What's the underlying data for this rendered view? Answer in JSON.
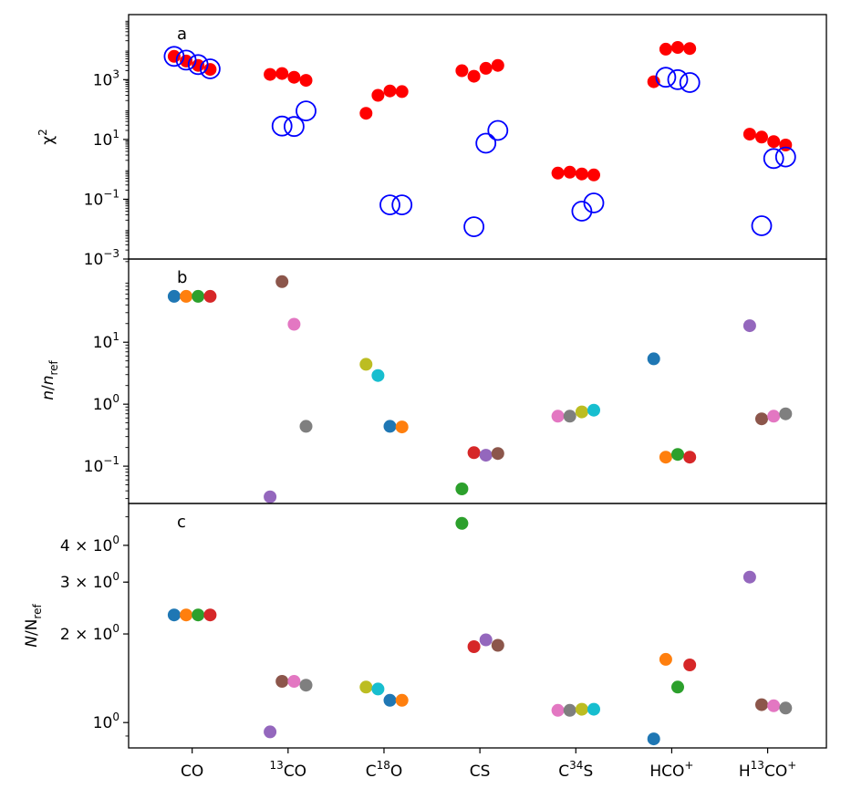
{
  "colors": {
    "red": "#ff0000",
    "blue": "#0000ff",
    "tab_blue": "#1f77b4",
    "tab_orange": "#ff7f0e",
    "tab_green": "#2ca02c",
    "tab_red": "#d62728",
    "tab_purple": "#9467bd",
    "tab_brown": "#8c564b",
    "tab_pink": "#e377c2",
    "tab_gray": "#7f7f7f",
    "tab_olive": "#bcbd22",
    "tab_cyan": "#17becf"
  },
  "chart_data": [
    {
      "panel": "a",
      "type": "scatter",
      "yscale": "log",
      "ylabel": "χ²",
      "ylim": [
        0.001,
        150000
      ],
      "yticks": [
        {
          "value": 0.001,
          "base": "10",
          "exp": "−3"
        },
        {
          "value": 0.1,
          "base": "10",
          "exp": "−1"
        },
        {
          "value": 10,
          "base": "10",
          "exp": "1"
        },
        {
          "value": 1000,
          "base": "10",
          "exp": "3"
        }
      ],
      "categories": [
        "CO",
        "¹³CO",
        "C¹⁸O",
        "CS",
        "C³⁴S",
        "HCO⁺",
        "H¹³CO⁺"
      ],
      "series": [
        {
          "name": "filled",
          "style": "filled",
          "color": "red",
          "points": [
            [
              0.0,
              6000
            ],
            [
              0.5,
              4200
            ],
            [
              1.0,
              3000
            ],
            [
              1.5,
              2200
            ],
            [
              4.0,
              1500
            ],
            [
              4.5,
              1600
            ],
            [
              5.0,
              1200
            ],
            [
              5.5,
              950
            ],
            [
              8.0,
              75
            ],
            [
              8.5,
              300
            ],
            [
              9.0,
              420
            ],
            [
              9.5,
              400
            ],
            [
              12.0,
              2000
            ],
            [
              12.5,
              1300
            ],
            [
              13.0,
              2400
            ],
            [
              13.5,
              3000
            ],
            [
              16.0,
              0.75
            ],
            [
              16.5,
              0.8
            ],
            [
              17.0,
              0.7
            ],
            [
              17.5,
              0.65
            ],
            [
              20.0,
              850
            ],
            [
              20.5,
              10500
            ],
            [
              21.0,
              12000
            ],
            [
              21.5,
              11000
            ],
            [
              24.0,
              15
            ],
            [
              24.5,
              12
            ],
            [
              25.0,
              8.5
            ],
            [
              25.5,
              6.5
            ]
          ]
        },
        {
          "name": "open",
          "style": "open",
          "color": "blue",
          "points": [
            [
              0.0,
              6000
            ],
            [
              0.5,
              4500
            ],
            [
              1.0,
              3200
            ],
            [
              1.5,
              2300
            ],
            [
              4.5,
              28
            ],
            [
              5.0,
              27
            ],
            [
              5.5,
              90
            ],
            [
              9.0,
              0.065
            ],
            [
              9.5,
              0.065
            ],
            [
              12.5,
              0.012
            ],
            [
              13.0,
              7.5
            ],
            [
              13.5,
              20
            ],
            [
              17.0,
              0.04
            ],
            [
              17.5,
              0.075
            ],
            [
              20.5,
              1200
            ],
            [
              21.0,
              1000
            ],
            [
              21.5,
              800
            ],
            [
              24.5,
              0.013
            ],
            [
              25.0,
              2.3
            ],
            [
              25.5,
              2.6
            ]
          ]
        }
      ]
    },
    {
      "panel": "b",
      "type": "scatter",
      "yscale": "log",
      "ylabel": "n/n_ref",
      "ylim": [
        0.025,
        220
      ],
      "yticks": [
        {
          "value": 0.1,
          "base": "10",
          "exp": "−1"
        },
        {
          "value": 1,
          "base": "10",
          "exp": "0"
        },
        {
          "value": 10,
          "base": "10",
          "exp": "1"
        }
      ],
      "categories": [
        "CO",
        "¹³CO",
        "C¹⁸O",
        "CS",
        "C³⁴S",
        "HCO⁺",
        "H¹³CO⁺"
      ],
      "points": [
        {
          "x": 0.0,
          "y": 55,
          "color": "tab_blue"
        },
        {
          "x": 0.5,
          "y": 55,
          "color": "tab_orange"
        },
        {
          "x": 1.0,
          "y": 55,
          "color": "tab_green"
        },
        {
          "x": 1.5,
          "y": 55,
          "color": "tab_red"
        },
        {
          "x": 4.0,
          "y": 0.032,
          "color": "tab_purple"
        },
        {
          "x": 4.5,
          "y": 95,
          "color": "tab_brown"
        },
        {
          "x": 5.0,
          "y": 19.5,
          "color": "tab_pink"
        },
        {
          "x": 5.5,
          "y": 0.44,
          "color": "tab_gray"
        },
        {
          "x": 8.0,
          "y": 4.4,
          "color": "tab_olive"
        },
        {
          "x": 8.5,
          "y": 2.9,
          "color": "tab_cyan"
        },
        {
          "x": 9.0,
          "y": 0.44,
          "color": "tab_blue"
        },
        {
          "x": 9.5,
          "y": 0.43,
          "color": "tab_orange"
        },
        {
          "x": 12.0,
          "y": 0.043,
          "color": "tab_green"
        },
        {
          "x": 12.5,
          "y": 0.165,
          "color": "tab_red"
        },
        {
          "x": 13.0,
          "y": 0.15,
          "color": "tab_purple"
        },
        {
          "x": 13.5,
          "y": 0.16,
          "color": "tab_brown"
        },
        {
          "x": 16.0,
          "y": 0.64,
          "color": "tab_pink"
        },
        {
          "x": 16.5,
          "y": 0.64,
          "color": "tab_gray"
        },
        {
          "x": 17.0,
          "y": 0.75,
          "color": "tab_olive"
        },
        {
          "x": 17.5,
          "y": 0.8,
          "color": "tab_cyan"
        },
        {
          "x": 20.0,
          "y": 5.4,
          "color": "tab_blue"
        },
        {
          "x": 20.5,
          "y": 0.14,
          "color": "tab_orange"
        },
        {
          "x": 21.0,
          "y": 0.155,
          "color": "tab_green"
        },
        {
          "x": 21.5,
          "y": 0.14,
          "color": "tab_red"
        },
        {
          "x": 24.0,
          "y": 18.5,
          "color": "tab_purple"
        },
        {
          "x": 24.5,
          "y": 0.58,
          "color": "tab_brown"
        },
        {
          "x": 25.0,
          "y": 0.64,
          "color": "tab_pink"
        },
        {
          "x": 25.5,
          "y": 0.7,
          "color": "tab_gray"
        }
      ]
    },
    {
      "panel": "c",
      "type": "scatter",
      "yscale": "log",
      "ylabel": "N/N_ref",
      "ylim": [
        0.82,
        5.55
      ],
      "yticks": [
        {
          "value": 1,
          "coef": "",
          "base": "10",
          "exp": "0"
        },
        {
          "value": 2,
          "coef": "2 × ",
          "base": "10",
          "exp": "0"
        },
        {
          "value": 3,
          "coef": "3 × ",
          "base": "10",
          "exp": "0"
        },
        {
          "value": 4,
          "coef": "4 × ",
          "base": "10",
          "exp": "0"
        }
      ],
      "categories": [
        "CO",
        "¹³CO",
        "C¹⁸O",
        "CS",
        "C³⁴S",
        "HCO⁺",
        "H¹³CO⁺"
      ],
      "points": [
        {
          "x": 0.0,
          "y": 2.32,
          "color": "tab_blue"
        },
        {
          "x": 0.5,
          "y": 2.32,
          "color": "tab_orange"
        },
        {
          "x": 1.0,
          "y": 2.32,
          "color": "tab_green"
        },
        {
          "x": 1.5,
          "y": 2.32,
          "color": "tab_red"
        },
        {
          "x": 4.0,
          "y": 0.93,
          "color": "tab_purple"
        },
        {
          "x": 4.5,
          "y": 1.38,
          "color": "tab_brown"
        },
        {
          "x": 5.0,
          "y": 1.38,
          "color": "tab_pink"
        },
        {
          "x": 5.5,
          "y": 1.34,
          "color": "tab_gray"
        },
        {
          "x": 8.0,
          "y": 1.32,
          "color": "tab_olive"
        },
        {
          "x": 8.5,
          "y": 1.3,
          "color": "tab_cyan"
        },
        {
          "x": 9.0,
          "y": 1.19,
          "color": "tab_blue"
        },
        {
          "x": 9.5,
          "y": 1.19,
          "color": "tab_orange"
        },
        {
          "x": 12.0,
          "y": 4.75,
          "color": "tab_green"
        },
        {
          "x": 12.5,
          "y": 1.81,
          "color": "tab_red"
        },
        {
          "x": 13.0,
          "y": 1.91,
          "color": "tab_purple"
        },
        {
          "x": 13.5,
          "y": 1.83,
          "color": "tab_brown"
        },
        {
          "x": 16.0,
          "y": 1.1,
          "color": "tab_pink"
        },
        {
          "x": 16.5,
          "y": 1.1,
          "color": "tab_gray"
        },
        {
          "x": 17.0,
          "y": 1.11,
          "color": "tab_olive"
        },
        {
          "x": 17.5,
          "y": 1.11,
          "color": "tab_cyan"
        },
        {
          "x": 20.0,
          "y": 0.88,
          "color": "tab_blue"
        },
        {
          "x": 20.5,
          "y": 1.64,
          "color": "tab_orange"
        },
        {
          "x": 21.0,
          "y": 1.32,
          "color": "tab_green"
        },
        {
          "x": 21.5,
          "y": 1.57,
          "color": "tab_red"
        },
        {
          "x": 24.0,
          "y": 3.12,
          "color": "tab_purple"
        },
        {
          "x": 24.5,
          "y": 1.15,
          "color": "tab_brown"
        },
        {
          "x": 25.0,
          "y": 1.14,
          "color": "tab_pink"
        },
        {
          "x": 25.5,
          "y": 1.12,
          "color": "tab_gray"
        }
      ]
    }
  ],
  "x_axis": {
    "xlim": [
      -1.9,
      27.2
    ],
    "ticks": [
      {
        "x": 0.75,
        "pre": "",
        "sup1": "",
        "mid": "CO",
        "sup2": ""
      },
      {
        "x": 4.75,
        "pre": "",
        "sup1": "13",
        "mid": "CO",
        "sup2": ""
      },
      {
        "x": 8.75,
        "pre": "C",
        "sup1": "18",
        "mid": "O",
        "sup2": ""
      },
      {
        "x": 12.75,
        "pre": "CS",
        "sup1": "",
        "mid": "",
        "sup2": ""
      },
      {
        "x": 16.75,
        "pre": "C",
        "sup1": "34",
        "mid": "S",
        "sup2": ""
      },
      {
        "x": 20.75,
        "pre": "HCO",
        "sup1": "+",
        "mid": "",
        "sup2": ""
      },
      {
        "x": 24.75,
        "pre": "H",
        "sup1": "13",
        "mid": "CO",
        "sup2": "+"
      }
    ]
  },
  "panel_labels": [
    "a",
    "b",
    "c"
  ]
}
